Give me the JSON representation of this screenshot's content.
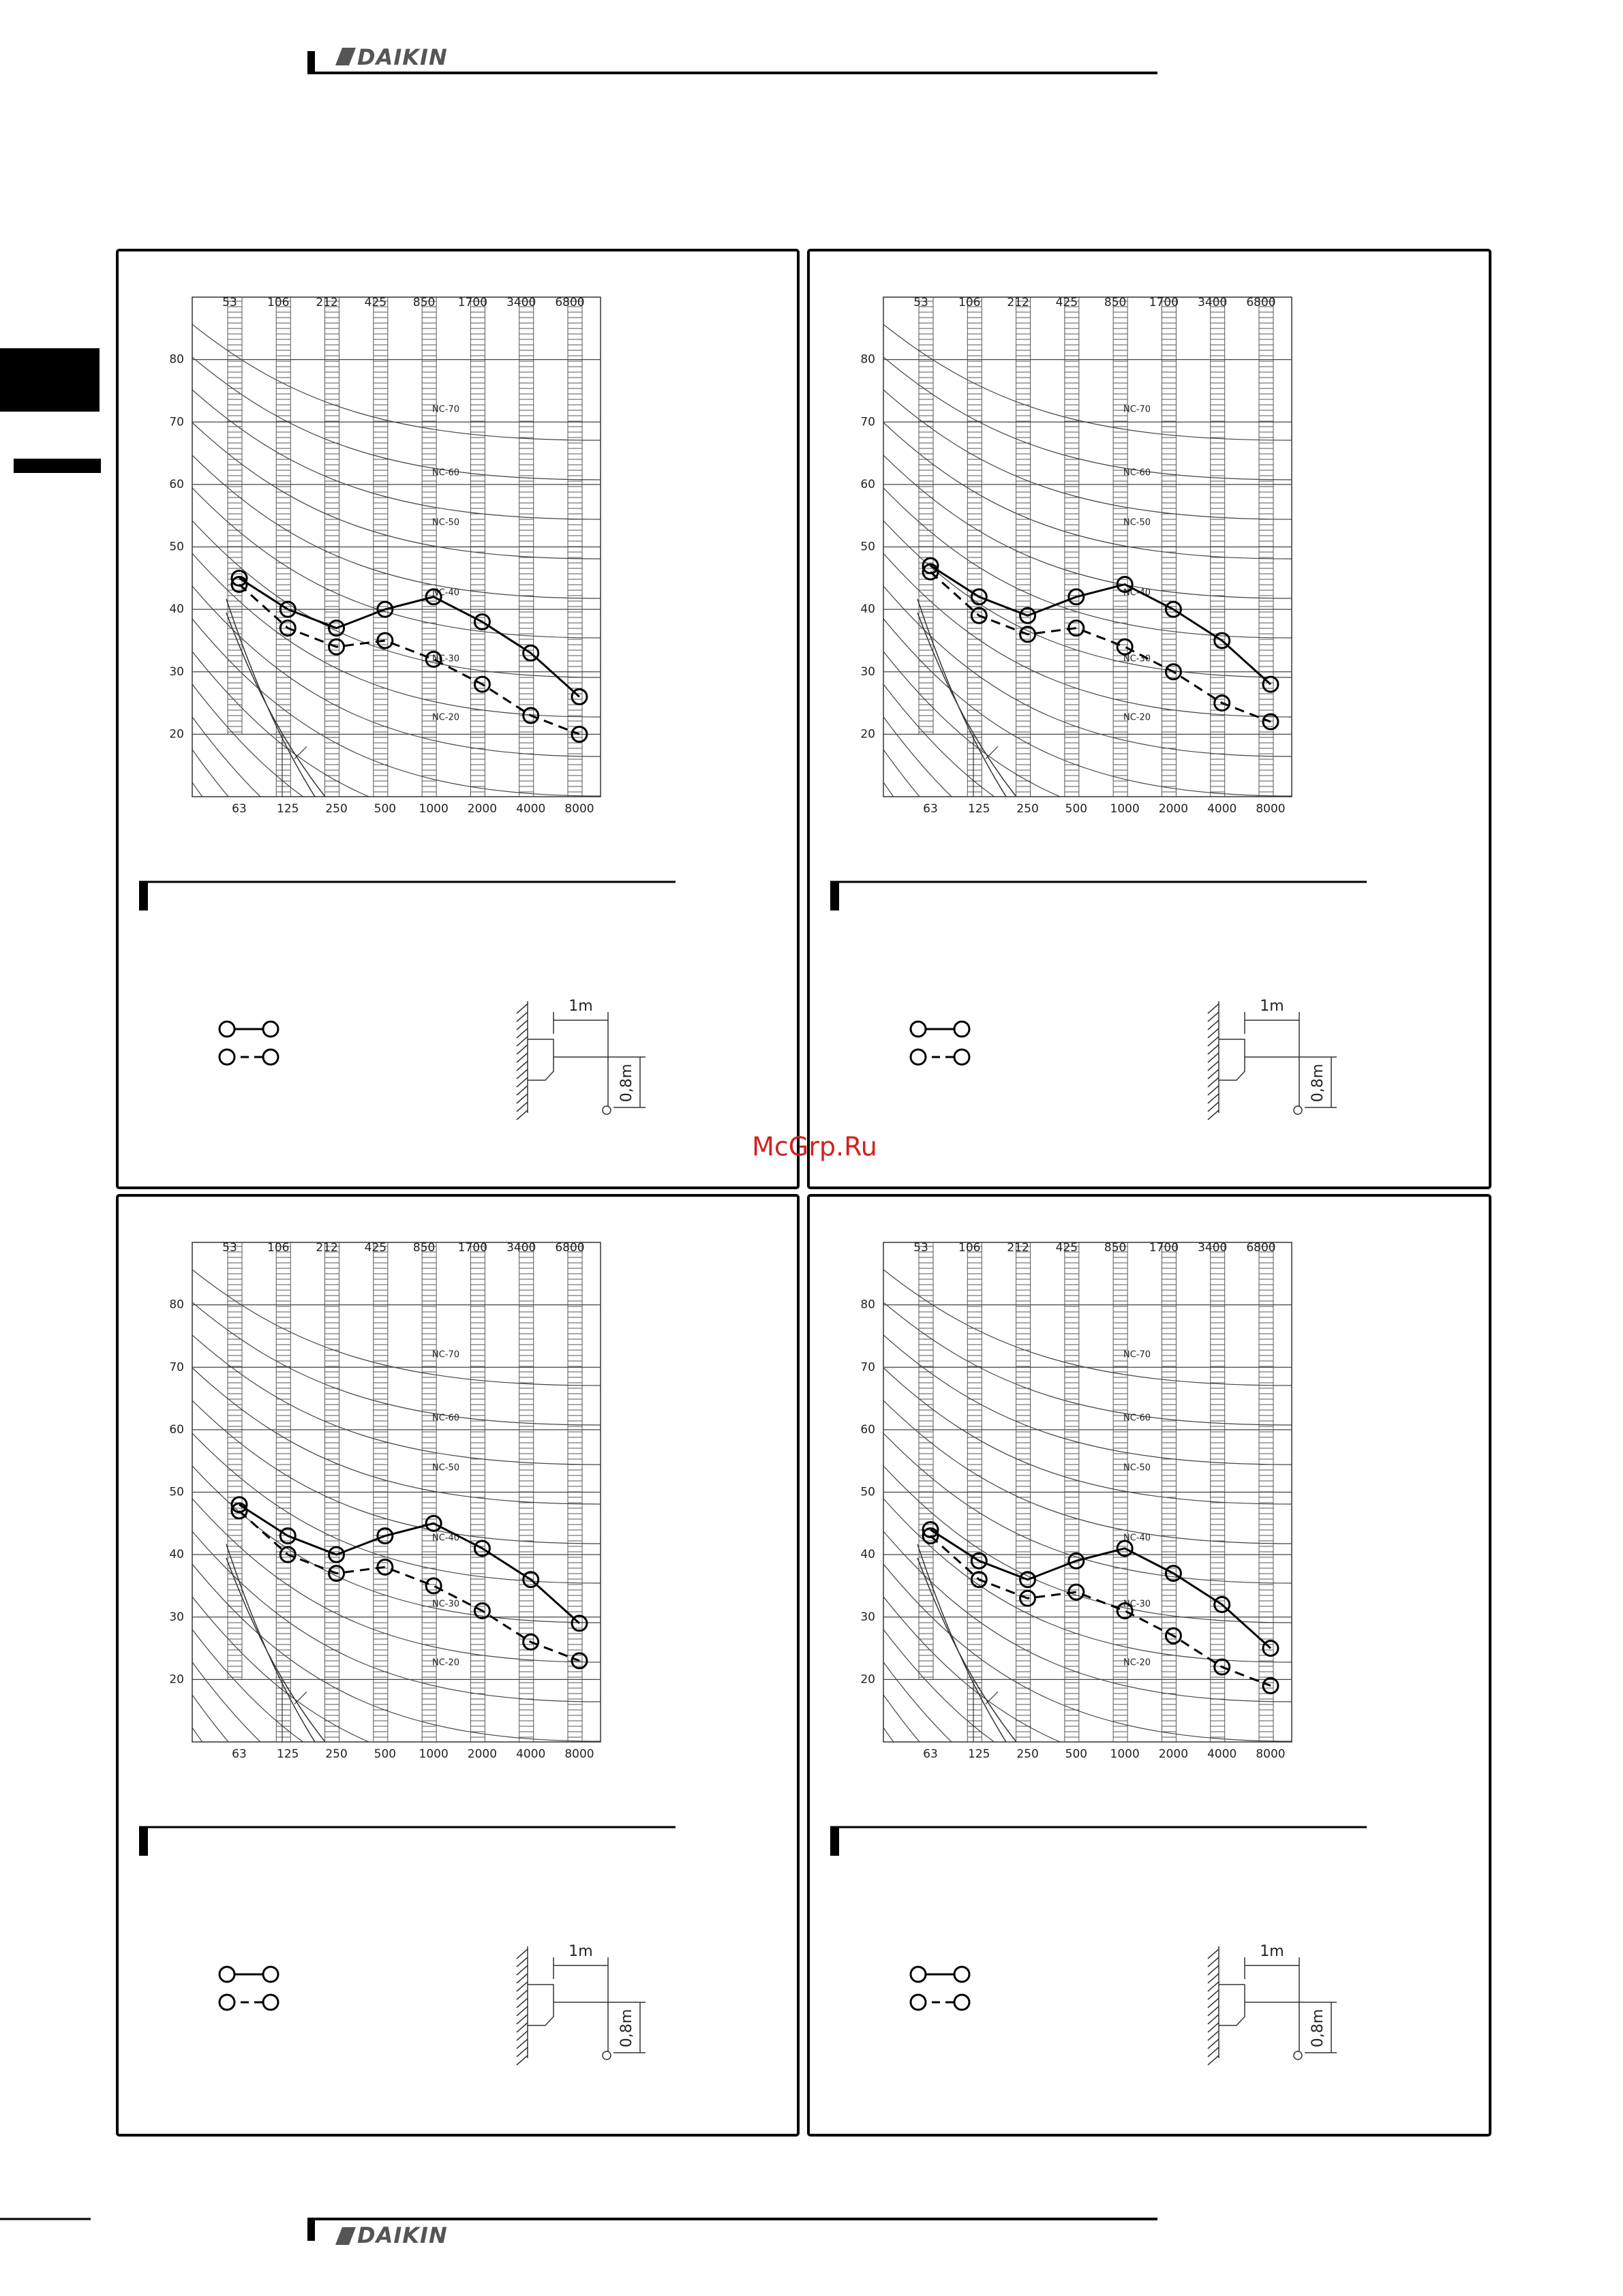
{
  "header": {
    "logo": "DAIKIN"
  },
  "footer": {
    "logo": "DAIKIN"
  },
  "watermark": "McGrp.Ru",
  "chart_data": [
    {
      "type": "line",
      "top_labels": [
        "53",
        "106",
        "212",
        "425",
        "850",
        "1700",
        "3400",
        "6800"
      ],
      "categories": [
        "63",
        "125",
        "250",
        "500",
        "1000",
        "2000",
        "4000",
        "8000"
      ],
      "nc_labels": [
        "NC-70",
        "NC-60",
        "NC-50",
        "NC-40",
        "NC-30",
        "NC-20"
      ],
      "ylim": [
        10,
        90
      ],
      "yticks": [
        20,
        30,
        40,
        50,
        60,
        70,
        80
      ],
      "grid": true,
      "series": [
        {
          "color": "#000000",
          "line_style": "solid",
          "values": [
            45,
            40,
            37,
            40,
            42,
            38,
            33,
            26
          ]
        },
        {
          "color": "#000000",
          "line_style": "dashed",
          "values": [
            44,
            37,
            34,
            35,
            32,
            28,
            23,
            20
          ]
        }
      ],
      "diagram": {
        "width_label": "1m",
        "height_label": "0,8m"
      }
    },
    {
      "type": "line",
      "top_labels": [
        "53",
        "106",
        "212",
        "425",
        "850",
        "1700",
        "3400",
        "6800"
      ],
      "categories": [
        "63",
        "125",
        "250",
        "500",
        "1000",
        "2000",
        "4000",
        "8000"
      ],
      "nc_labels": [
        "NC-70",
        "NC-60",
        "NC-50",
        "NC-40",
        "NC-30",
        "NC-20"
      ],
      "ylim": [
        10,
        90
      ],
      "yticks": [
        20,
        30,
        40,
        50,
        60,
        70,
        80
      ],
      "grid": true,
      "series": [
        {
          "color": "#000000",
          "line_style": "solid",
          "values": [
            47,
            42,
            39,
            42,
            44,
            40,
            35,
            28
          ]
        },
        {
          "color": "#000000",
          "line_style": "dashed",
          "values": [
            46,
            39,
            36,
            37,
            34,
            30,
            25,
            22
          ]
        }
      ],
      "diagram": {
        "width_label": "1m",
        "height_label": "0,8m"
      }
    },
    {
      "type": "line",
      "top_labels": [
        "53",
        "106",
        "212",
        "425",
        "850",
        "1700",
        "3400",
        "6800"
      ],
      "categories": [
        "63",
        "125",
        "250",
        "500",
        "1000",
        "2000",
        "4000",
        "8000"
      ],
      "nc_labels": [
        "NC-70",
        "NC-60",
        "NC-50",
        "NC-40",
        "NC-30",
        "NC-20"
      ],
      "ylim": [
        10,
        90
      ],
      "yticks": [
        20,
        30,
        40,
        50,
        60,
        70,
        80
      ],
      "grid": true,
      "series": [
        {
          "color": "#000000",
          "line_style": "solid",
          "values": [
            48,
            43,
            40,
            43,
            45,
            41,
            36,
            29
          ]
        },
        {
          "color": "#000000",
          "line_style": "dashed",
          "values": [
            47,
            40,
            37,
            38,
            35,
            31,
            26,
            23
          ]
        }
      ],
      "diagram": {
        "width_label": "1m",
        "height_label": "0,8m"
      }
    },
    {
      "type": "line",
      "top_labels": [
        "53",
        "106",
        "212",
        "425",
        "850",
        "1700",
        "3400",
        "6800"
      ],
      "categories": [
        "63",
        "125",
        "250",
        "500",
        "1000",
        "2000",
        "4000",
        "8000"
      ],
      "nc_labels": [
        "NC-70",
        "NC-60",
        "NC-50",
        "NC-40",
        "NC-30",
        "NC-20"
      ],
      "ylim": [
        10,
        90
      ],
      "yticks": [
        20,
        30,
        40,
        50,
        60,
        70,
        80
      ],
      "grid": true,
      "series": [
        {
          "color": "#000000",
          "line_style": "solid",
          "values": [
            44,
            39,
            36,
            39,
            41,
            37,
            32,
            25
          ]
        },
        {
          "color": "#000000",
          "line_style": "dashed",
          "values": [
            43,
            36,
            33,
            34,
            31,
            27,
            22,
            19
          ]
        }
      ],
      "diagram": {
        "width_label": "1m",
        "height_label": "0,8m"
      }
    }
  ]
}
